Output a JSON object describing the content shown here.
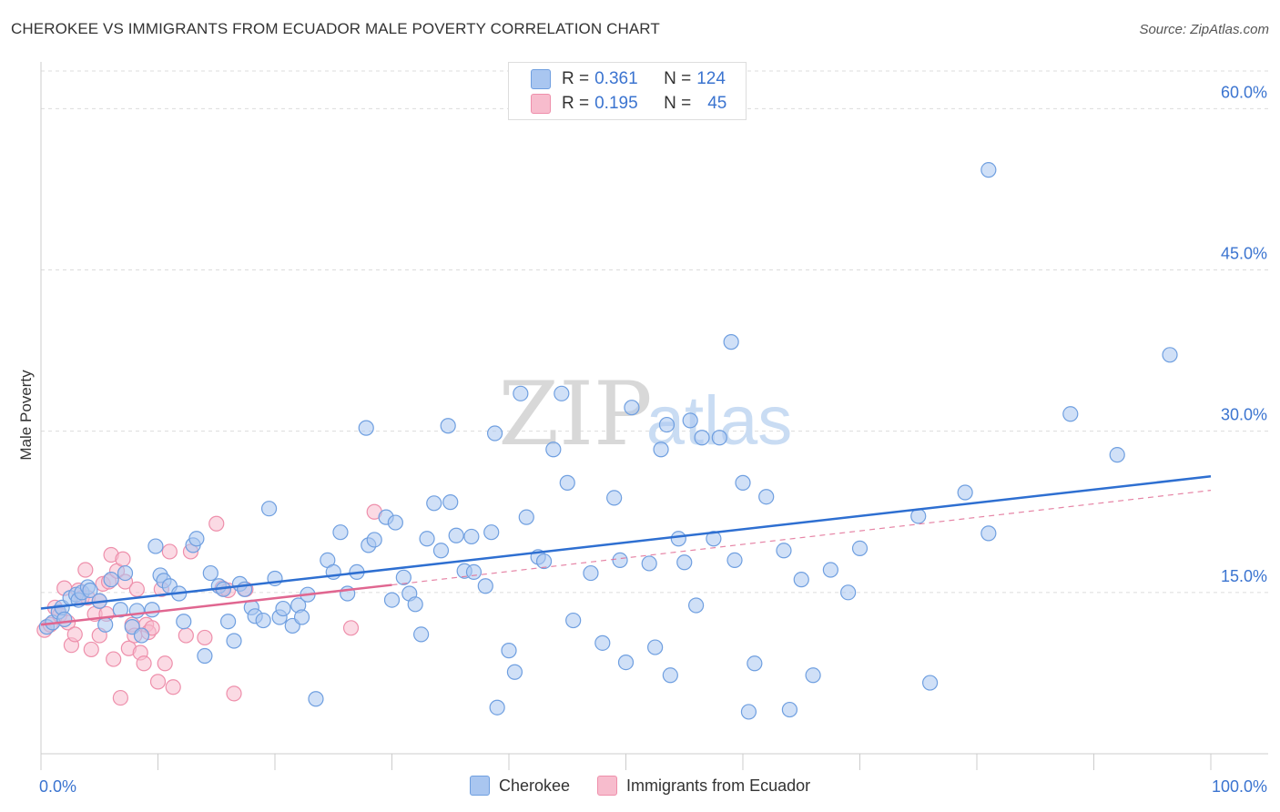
{
  "header": {
    "title": "CHEROKEE VS IMMIGRANTS FROM ECUADOR MALE POVERTY CORRELATION CHART",
    "source": "Source: ZipAtlas.com"
  },
  "legend": {
    "rows": [
      {
        "r_label": "R =",
        "r_value": "0.361",
        "n_label": "N =",
        "n_value": "124"
      },
      {
        "r_label": "R =",
        "r_value": "0.195",
        "n_label": "N =",
        "n_value": "45"
      }
    ]
  },
  "watermark": {
    "zip": "ZIP",
    "atlas": "atlas"
  },
  "colors": {
    "cherokee_fill": "#a9c6f0",
    "cherokee_stroke": "#6f9fe0",
    "cherokee_line": "#2e6fd1",
    "ecuador_fill": "#f7bccd",
    "ecuador_stroke": "#ee8fab",
    "ecuador_line": "#e06690",
    "axis_text": "#3b74d0"
  },
  "chart_data": {
    "type": "scatter",
    "title": "CHEROKEE VS IMMIGRANTS FROM ECUADOR MALE POVERTY CORRELATION CHART",
    "xlabel": "",
    "ylabel": "Male Poverty",
    "xlim": [
      0,
      100
    ],
    "ylim": [
      0,
      63.5
    ],
    "x_tick_labels": [
      "0.0%",
      "100.0%"
    ],
    "y_ticks": [
      15,
      30,
      45,
      60
    ],
    "y_tick_labels": [
      "15.0%",
      "30.0%",
      "45.0%",
      "60.0%"
    ],
    "legend_position": "top-center",
    "series": [
      {
        "name": "Cherokee",
        "r": 0.361,
        "n": 124,
        "trend": {
          "x0": 0,
          "y0": 13.5,
          "x1": 100,
          "y1": 25.8
        },
        "points": [
          [
            0.5,
            11.8
          ],
          [
            1,
            12.2
          ],
          [
            1.5,
            13.2
          ],
          [
            1.8,
            13.6
          ],
          [
            2,
            12.5
          ],
          [
            2.5,
            14.5
          ],
          [
            3,
            14.8
          ],
          [
            3.2,
            14.3
          ],
          [
            3.5,
            15.0
          ],
          [
            4,
            15.5
          ],
          [
            4.2,
            15.2
          ],
          [
            5,
            14.2
          ],
          [
            5.5,
            12.0
          ],
          [
            6,
            16.2
          ],
          [
            6.8,
            13.4
          ],
          [
            7.2,
            16.8
          ],
          [
            7.8,
            11.8
          ],
          [
            8.2,
            13.3
          ],
          [
            8.6,
            11.0
          ],
          [
            9.5,
            13.4
          ],
          [
            9.8,
            19.3
          ],
          [
            10.2,
            16.6
          ],
          [
            10.5,
            16.1
          ],
          [
            11,
            15.6
          ],
          [
            11.8,
            14.9
          ],
          [
            12.2,
            12.3
          ],
          [
            13,
            19.4
          ],
          [
            13.3,
            20.0
          ],
          [
            14,
            9.1
          ],
          [
            14.5,
            16.8
          ],
          [
            15.2,
            15.6
          ],
          [
            15.6,
            15.3
          ],
          [
            16,
            12.3
          ],
          [
            16.5,
            10.5
          ],
          [
            17,
            15.8
          ],
          [
            17.4,
            15.3
          ],
          [
            18,
            13.6
          ],
          [
            18.3,
            12.8
          ],
          [
            19,
            12.4
          ],
          [
            19.5,
            22.8
          ],
          [
            20,
            16.3
          ],
          [
            20.4,
            12.7
          ],
          [
            20.7,
            13.5
          ],
          [
            21.5,
            11.9
          ],
          [
            22,
            13.8
          ],
          [
            22.3,
            12.7
          ],
          [
            22.8,
            14.8
          ],
          [
            23.5,
            5.1
          ],
          [
            24.5,
            18.0
          ],
          [
            25,
            16.9
          ],
          [
            25.6,
            20.6
          ],
          [
            26.2,
            14.9
          ],
          [
            27,
            16.9
          ],
          [
            27.8,
            30.3
          ],
          [
            28,
            19.4
          ],
          [
            28.5,
            19.9
          ],
          [
            29.5,
            22.0
          ],
          [
            30,
            14.3
          ],
          [
            30.3,
            21.5
          ],
          [
            31,
            16.4
          ],
          [
            31.5,
            14.9
          ],
          [
            32,
            13.9
          ],
          [
            32.5,
            11.1
          ],
          [
            33,
            20.0
          ],
          [
            33.6,
            23.3
          ],
          [
            34.2,
            18.9
          ],
          [
            34.8,
            30.5
          ],
          [
            35,
            23.4
          ],
          [
            35.5,
            20.3
          ],
          [
            36.2,
            17.0
          ],
          [
            36.8,
            20.2
          ],
          [
            37,
            16.9
          ],
          [
            38,
            15.6
          ],
          [
            38.5,
            20.6
          ],
          [
            38.8,
            29.8
          ],
          [
            39,
            4.3
          ],
          [
            40,
            9.6
          ],
          [
            40.5,
            7.6
          ],
          [
            41,
            33.5
          ],
          [
            41.5,
            22.0
          ],
          [
            42.5,
            18.3
          ],
          [
            43,
            17.9
          ],
          [
            43.8,
            28.3
          ],
          [
            44.5,
            33.5
          ],
          [
            45,
            25.2
          ],
          [
            45.5,
            12.4
          ],
          [
            47,
            16.8
          ],
          [
            48,
            10.3
          ],
          [
            49,
            23.8
          ],
          [
            49.5,
            18.0
          ],
          [
            50,
            8.5
          ],
          [
            50.5,
            32.2
          ],
          [
            52,
            17.7
          ],
          [
            52.5,
            9.9
          ],
          [
            53,
            28.3
          ],
          [
            53.5,
            30.6
          ],
          [
            53.8,
            7.3
          ],
          [
            54.5,
            20.0
          ],
          [
            55,
            17.8
          ],
          [
            55.5,
            31.0
          ],
          [
            56,
            13.8
          ],
          [
            56.5,
            29.4
          ],
          [
            57.5,
            20.0
          ],
          [
            58,
            29.4
          ],
          [
            59,
            38.3
          ],
          [
            59.3,
            18.0
          ],
          [
            60,
            25.2
          ],
          [
            60.5,
            3.9
          ],
          [
            61,
            8.4
          ],
          [
            62,
            23.9
          ],
          [
            63.5,
            18.9
          ],
          [
            64,
            4.1
          ],
          [
            65,
            16.2
          ],
          [
            66,
            7.3
          ],
          [
            67.5,
            17.1
          ],
          [
            69,
            15.0
          ],
          [
            70,
            19.1
          ],
          [
            75,
            22.1
          ],
          [
            76,
            6.6
          ],
          [
            79,
            24.3
          ],
          [
            81,
            20.5
          ],
          [
            81,
            54.3
          ],
          [
            88,
            31.6
          ],
          [
            92,
            27.8
          ],
          [
            96.5,
            37.1
          ]
        ]
      },
      {
        "name": "Immigrants from Ecuador",
        "r": 0.195,
        "n": 45,
        "trend": {
          "x0": 0,
          "y0": 12.0,
          "x1": 30,
          "y1": 15.7
        },
        "trend_dashed": {
          "x0": 30,
          "y0": 15.7,
          "x1": 100,
          "y1": 24.5
        },
        "points": [
          [
            0.3,
            11.5
          ],
          [
            0.8,
            12.0
          ],
          [
            1.2,
            13.6
          ],
          [
            1.6,
            12.9
          ],
          [
            2,
            15.4
          ],
          [
            2.3,
            12.2
          ],
          [
            2.6,
            10.1
          ],
          [
            2.9,
            11.1
          ],
          [
            3.2,
            15.2
          ],
          [
            3.5,
            14.5
          ],
          [
            3.8,
            17.1
          ],
          [
            4,
            14.5
          ],
          [
            4.3,
            9.7
          ],
          [
            4.6,
            13.0
          ],
          [
            5,
            14.2
          ],
          [
            5,
            11.0
          ],
          [
            5.3,
            15.8
          ],
          [
            5.6,
            13.0
          ],
          [
            5.8,
            16.0
          ],
          [
            6,
            18.5
          ],
          [
            6.2,
            8.8
          ],
          [
            6.5,
            17.0
          ],
          [
            6.8,
            5.2
          ],
          [
            7,
            18.1
          ],
          [
            7.2,
            16.0
          ],
          [
            7.5,
            9.8
          ],
          [
            7.8,
            12.0
          ],
          [
            8,
            11.0
          ],
          [
            8.2,
            15.3
          ],
          [
            8.5,
            9.4
          ],
          [
            8.8,
            8.4
          ],
          [
            9,
            12.0
          ],
          [
            9.2,
            11.3
          ],
          [
            9.5,
            11.7
          ],
          [
            10,
            6.7
          ],
          [
            10.3,
            15.3
          ],
          [
            10.6,
            8.4
          ],
          [
            11,
            18.8
          ],
          [
            11.3,
            6.2
          ],
          [
            12.4,
            11.0
          ],
          [
            12.8,
            18.8
          ],
          [
            14,
            10.8
          ],
          [
            15,
            21.4
          ],
          [
            15.5,
            15.4
          ],
          [
            16,
            15.2
          ],
          [
            16.5,
            5.6
          ],
          [
            17.5,
            15.3
          ],
          [
            26.5,
            11.7
          ],
          [
            28.5,
            22.5
          ]
        ]
      }
    ]
  }
}
